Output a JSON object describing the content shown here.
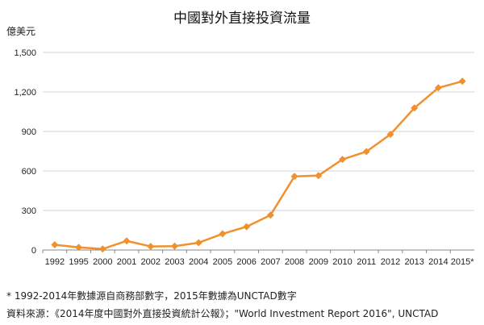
{
  "chart_data": {
    "type": "line",
    "title": "中國對外直接投資流量",
    "ylabel": "億美元",
    "xlabel": "",
    "categories": [
      "1992",
      "1995",
      "2000",
      "2001",
      "2002",
      "2003",
      "2004",
      "2005",
      "2006",
      "2007",
      "2008",
      "2009",
      "2010",
      "2011",
      "2012",
      "2013",
      "2014",
      "2015*"
    ],
    "series": [
      {
        "values": [
          40,
          20,
          8,
          69,
          27,
          29,
          55,
          123,
          177,
          265,
          559,
          565,
          688,
          747,
          878,
          1078,
          1231,
          1281
        ]
      }
    ],
    "yticks": [
      "0",
      "300",
      "600",
      "900",
      "1,200",
      "1,500"
    ],
    "ylim": [
      0,
      1500
    ],
    "grid": true,
    "line_color": "#f0912d"
  },
  "footnotes": {
    "note1": "* 1992-2014年數據源自商務部數字，2015年數據為UNCTAD數字",
    "note2": "資料來源：《2014年度中國對外直接投資統計公報》；\"World Investment Report 2016\", UNCTAD"
  }
}
